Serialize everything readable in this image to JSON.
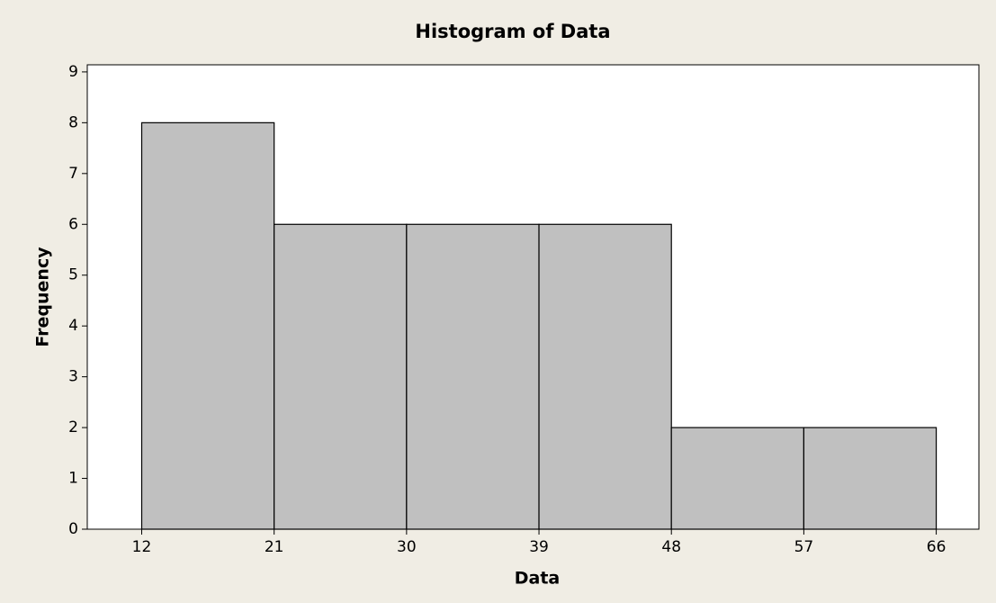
{
  "chart_data": {
    "type": "histogram",
    "title": "Histogram of Data",
    "x_label": "Data",
    "y_label": "Frequency",
    "bins": [
      12,
      21,
      30,
      39,
      48,
      57,
      66
    ],
    "counts": [
      8,
      6,
      6,
      6,
      2,
      2
    ],
    "color": "#c0c0c0",
    "xlim": [
      8.3,
      68.9
    ],
    "xticks": [
      12,
      21,
      30,
      39,
      48,
      57,
      66
    ],
    "ylim": [
      0,
      9.14
    ],
    "yticks": [
      0,
      1,
      2,
      3,
      4,
      5,
      6,
      7,
      8,
      9
    ]
  }
}
